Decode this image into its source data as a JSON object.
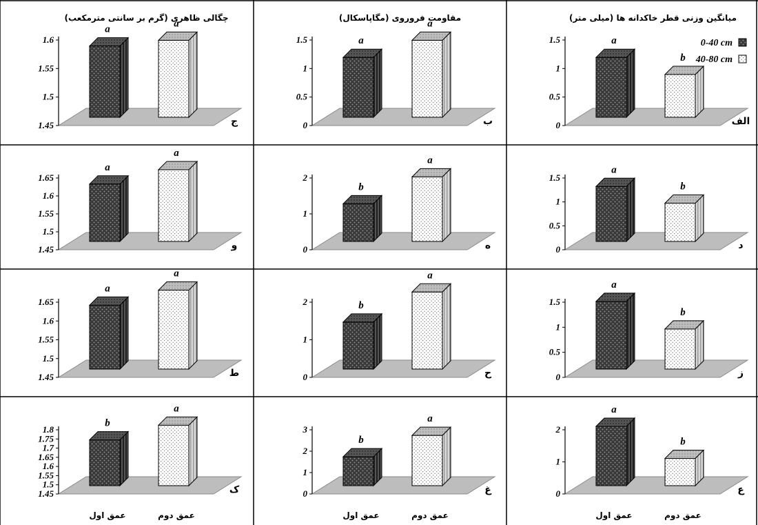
{
  "colors": {
    "dark_bar": "#3a3a3a",
    "light_bar": "#ffffff",
    "floor": "#bdbdbd",
    "border": "#000000"
  },
  "legend": {
    "items": [
      "0-40 cm",
      "40-80 cm"
    ]
  },
  "chart_data": [
    {
      "id": "alef",
      "type": "bar",
      "title": "میانگین وزنی قطر خاکدانه ها (میلی متر)",
      "panel_label": "الف",
      "yticks": [
        "0",
        "0.5",
        "1",
        "1.5"
      ],
      "ylim": [
        0,
        1.5
      ],
      "values": [
        1.05,
        0.75
      ],
      "letters": [
        "a",
        "b"
      ],
      "xlabels": [
        "",
        ""
      ]
    },
    {
      "id": "be",
      "type": "bar",
      "title": "مقاومت فروروی (مگاپاسکال)",
      "panel_label": "ب",
      "yticks": [
        "0",
        "0.5",
        "1",
        "1.5"
      ],
      "ylim": [
        0,
        1.5
      ],
      "values": [
        1.05,
        1.35
      ],
      "letters": [
        "a",
        "a"
      ],
      "xlabels": [
        "",
        ""
      ]
    },
    {
      "id": "jim",
      "type": "bar",
      "title": "چگالی ظاهری (گرم بر سانتی مترمکعب)",
      "panel_label": "ج",
      "yticks": [
        "1.45",
        "1.5",
        "1.55",
        "1.6"
      ],
      "ylim": [
        1.45,
        1.6
      ],
      "values": [
        1.575,
        1.585
      ],
      "letters": [
        "a",
        "a"
      ],
      "xlabels": [
        "",
        ""
      ]
    },
    {
      "id": "dal",
      "type": "bar",
      "title": "",
      "panel_label": "د",
      "yticks": [
        "0",
        "0.5",
        "1",
        "1.5"
      ],
      "ylim": [
        0,
        1.5
      ],
      "values": [
        1.15,
        0.8
      ],
      "letters": [
        "a",
        "b"
      ],
      "xlabels": [
        "",
        ""
      ]
    },
    {
      "id": "he",
      "type": "bar",
      "title": "",
      "panel_label": "ه",
      "yticks": [
        "0",
        "1",
        "2"
      ],
      "ylim": [
        0,
        2
      ],
      "values": [
        1.05,
        1.8
      ],
      "letters": [
        "b",
        "a"
      ],
      "xlabels": [
        "",
        ""
      ]
    },
    {
      "id": "vav",
      "type": "bar",
      "title": "",
      "panel_label": "و",
      "yticks": [
        "1.45",
        "1.5",
        "1.55",
        "1.6",
        "1.65"
      ],
      "ylim": [
        1.45,
        1.65
      ],
      "values": [
        1.61,
        1.65
      ],
      "letters": [
        "a",
        "a"
      ],
      "xlabels": [
        "",
        ""
      ]
    },
    {
      "id": "ze",
      "type": "bar",
      "title": "",
      "panel_label": "ز",
      "yticks": [
        "0",
        "0.5",
        "1",
        "1.5"
      ],
      "ylim": [
        0,
        1.5
      ],
      "values": [
        1.35,
        0.8
      ],
      "letters": [
        "a",
        "b"
      ],
      "xlabels": [
        "",
        ""
      ]
    },
    {
      "id": "he2",
      "type": "bar",
      "title": "",
      "panel_label": "ح",
      "yticks": [
        "0",
        "1",
        "2"
      ],
      "ylim": [
        0,
        2
      ],
      "values": [
        1.25,
        2.05
      ],
      "letters": [
        "b",
        "a"
      ],
      "xlabels": [
        "",
        ""
      ]
    },
    {
      "id": "ta",
      "type": "bar",
      "title": "",
      "panel_label": "ط",
      "yticks": [
        "1.45",
        "1.5",
        "1.55",
        "1.6",
        "1.65"
      ],
      "ylim": [
        1.45,
        1.65
      ],
      "values": [
        1.62,
        1.66
      ],
      "letters": [
        "a",
        "a"
      ],
      "xlabels": [
        "",
        ""
      ]
    },
    {
      "id": "ein",
      "type": "bar",
      "title": "",
      "panel_label": "ع",
      "yticks": [
        "0",
        "1",
        "2"
      ],
      "ylim": [
        0,
        2
      ],
      "values": [
        1.85,
        0.85
      ],
      "letters": [
        "a",
        "b"
      ],
      "xlabels": [
        "عمق اول",
        "عمق دوم"
      ]
    },
    {
      "id": "ghein",
      "type": "bar",
      "title": "",
      "panel_label": "غ",
      "yticks": [
        "0",
        "1",
        "2",
        "3"
      ],
      "ylim": [
        0,
        3
      ],
      "values": [
        1.35,
        2.35
      ],
      "letters": [
        "b",
        "a"
      ],
      "xlabels": [
        "عمق اول",
        "عمق دوم"
      ]
    },
    {
      "id": "kaf",
      "type": "bar",
      "title": "",
      "panel_label": "ک",
      "yticks": [
        "1.45",
        "1.5",
        "1.55",
        "1.6",
        "1.65",
        "1.7",
        "1.75",
        "1.8"
      ],
      "ylim": [
        1.45,
        1.8
      ],
      "values": [
        1.7,
        1.78
      ],
      "letters": [
        "b",
        "a"
      ],
      "xlabels": [
        "عمق اول",
        "عمق دوم"
      ]
    }
  ]
}
